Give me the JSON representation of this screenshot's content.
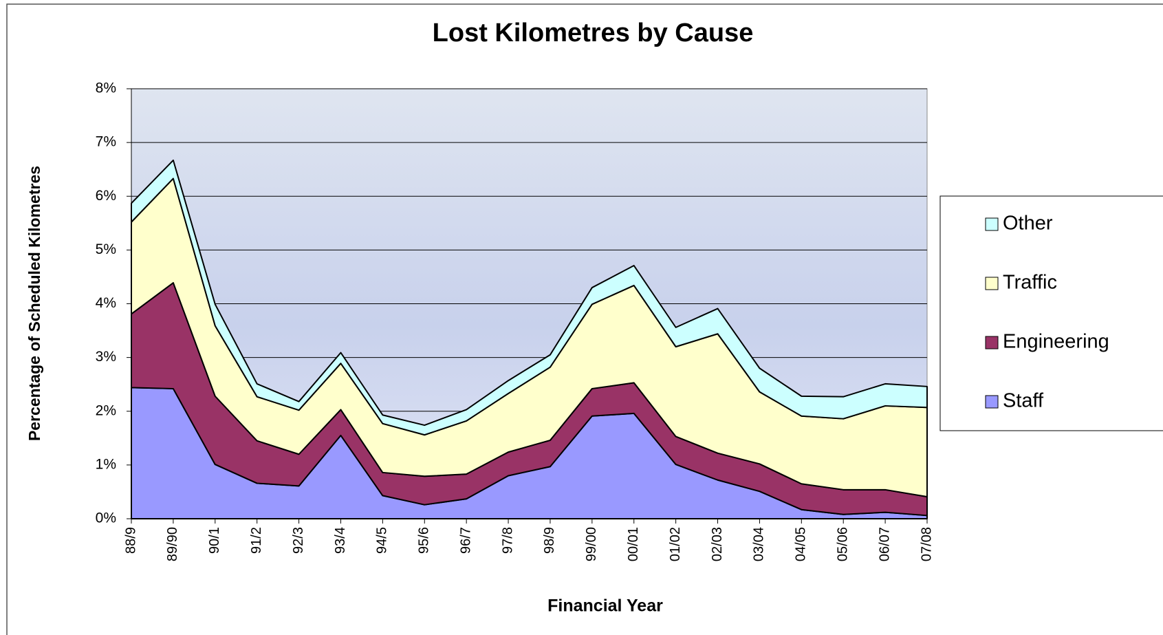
{
  "chart_data": {
    "type": "stacked_area",
    "title": "Lost Kilometres by Cause",
    "x_label": "Financial Year",
    "y_label": "Percentage of Scheduled Kilometres",
    "categories": [
      "88/9",
      "89/90",
      "90/1",
      "91/2",
      "92/3",
      "93/4",
      "94/5",
      "95/6",
      "96/7",
      "97/8",
      "98/9",
      "99/00",
      "00/01",
      "01/02",
      "02/03",
      "03/04",
      "04/05",
      "05/06",
      "06/07",
      "07/08"
    ],
    "series": [
      {
        "name": "Staff",
        "color": "#9999ff",
        "values": [
          2.44,
          2.42,
          1.01,
          0.66,
          0.61,
          1.55,
          0.43,
          0.26,
          0.37,
          0.8,
          0.97,
          1.91,
          1.96,
          1.01,
          0.72,
          0.51,
          0.17,
          0.08,
          0.12,
          0.06
        ]
      },
      {
        "name": "Engineering",
        "color": "#993366",
        "values": [
          1.37,
          1.97,
          1.27,
          0.79,
          0.59,
          0.48,
          0.43,
          0.53,
          0.46,
          0.44,
          0.49,
          0.51,
          0.57,
          0.52,
          0.5,
          0.51,
          0.48,
          0.46,
          0.42,
          0.35
        ]
      },
      {
        "name": "Traffic",
        "color": "#ffffcc",
        "values": [
          1.71,
          1.94,
          1.31,
          0.82,
          0.82,
          0.86,
          0.91,
          0.77,
          0.99,
          1.09,
          1.36,
          1.57,
          1.81,
          1.67,
          2.22,
          1.34,
          1.26,
          1.32,
          1.56,
          1.66
        ]
      },
      {
        "name": "Other",
        "color": "#ccffff",
        "values": [
          0.35,
          0.34,
          0.4,
          0.24,
          0.16,
          0.2,
          0.16,
          0.18,
          0.21,
          0.24,
          0.23,
          0.31,
          0.37,
          0.36,
          0.47,
          0.44,
          0.37,
          0.41,
          0.41,
          0.39
        ]
      }
    ],
    "ylim": [
      0,
      8
    ],
    "yticks": [
      {
        "value": 0,
        "label": "0%"
      },
      {
        "value": 1,
        "label": "1%"
      },
      {
        "value": 2,
        "label": "2%"
      },
      {
        "value": 3,
        "label": "3%"
      },
      {
        "value": 4,
        "label": "4%"
      },
      {
        "value": 5,
        "label": "5%"
      },
      {
        "value": 6,
        "label": "6%"
      },
      {
        "value": 7,
        "label": "7%"
      },
      {
        "value": 8,
        "label": "8%"
      }
    ],
    "grid": true,
    "legend": "right"
  }
}
